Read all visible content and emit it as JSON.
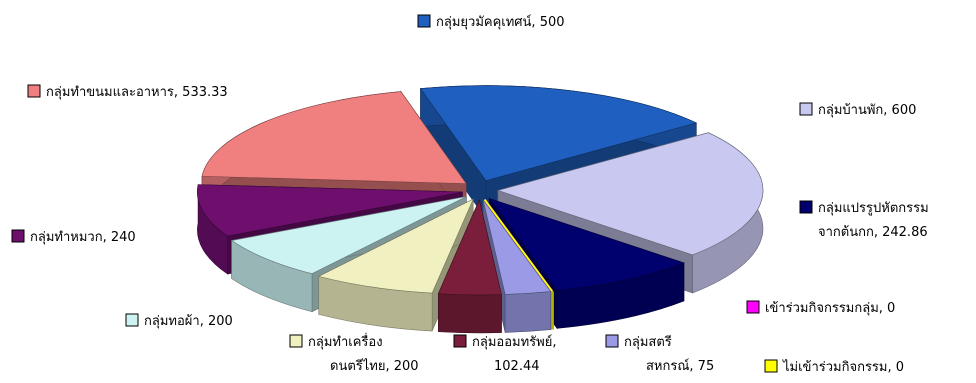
{
  "chart_data": {
    "type": "pie",
    "three_d": true,
    "exploded": true,
    "legend": "inline labels with square color keys",
    "slices": [
      {
        "label": "กลุ่มยุวมัคคุเทศน์",
        "label_lines": [
          "กลุ่มยุวมัคคุเทศน์, 500"
        ],
        "value": 500,
        "color": "#1f5fbf"
      },
      {
        "label": "กลุ่มบ้านพัก",
        "label_lines": [
          "กลุ่มบ้านพัก, 600"
        ],
        "value": 600,
        "color": "#c8c8f0"
      },
      {
        "label": "กลุ่มแปรรูปหัตกรรมจากต้นกก",
        "label_lines": [
          "กลุ่มแปรรูปหัตกรรม",
          "จากต้นกก, 242.86"
        ],
        "value": 242.86,
        "color": "#00006e"
      },
      {
        "label": "เข้าร่วมกิจกรรมกลุ่ม",
        "label_lines": [
          "เข้าร่วมกิจกรรมกลุ่ม, 0"
        ],
        "value": 0,
        "color": "#ff00ff"
      },
      {
        "label": "ไม่เข้าร่วมกิจกรรม",
        "label_lines": [
          "ไม่เข้าร่วมกิจกรรม, 0"
        ],
        "value": 0,
        "color": "#ffff00"
      },
      {
        "label": "กลุ่มสตรีสหกรณ์",
        "label_lines": [
          "กลุ่มสตรี",
          "สหกรณ์, 75"
        ],
        "value": 75,
        "color": "#9a9ae6"
      },
      {
        "label": "กลุ่มออมทรัพย์",
        "label_lines": [
          "กลุ่มออมทรัพย์,",
          "102.44"
        ],
        "value": 102.44,
        "color": "#7a1e3c"
      },
      {
        "label": "กลุ่มทำเครื่องดนตรีไทย",
        "label_lines": [
          "กลุ่มทำเครื่อง",
          "ดนตรีไทย, 200"
        ],
        "value": 200,
        "color": "#f0f0c0"
      },
      {
        "label": "กลุ่มทอผ้า",
        "label_lines": [
          "กลุ่มทอผ้า, 200"
        ],
        "value": 200,
        "color": "#ccf2f2"
      },
      {
        "label": "กลุ่มทำหมวก",
        "label_lines": [
          "กลุ่มทำหมวก, 240"
        ],
        "value": 240,
        "color": "#6e0f6e"
      },
      {
        "label": "กลุ่มทำขนมและอาหาร",
        "label_lines": [
          "กลุ่มทำขนมและอาหาร, 533.33"
        ],
        "value": 533.33,
        "color": "#f08080"
      }
    ]
  }
}
